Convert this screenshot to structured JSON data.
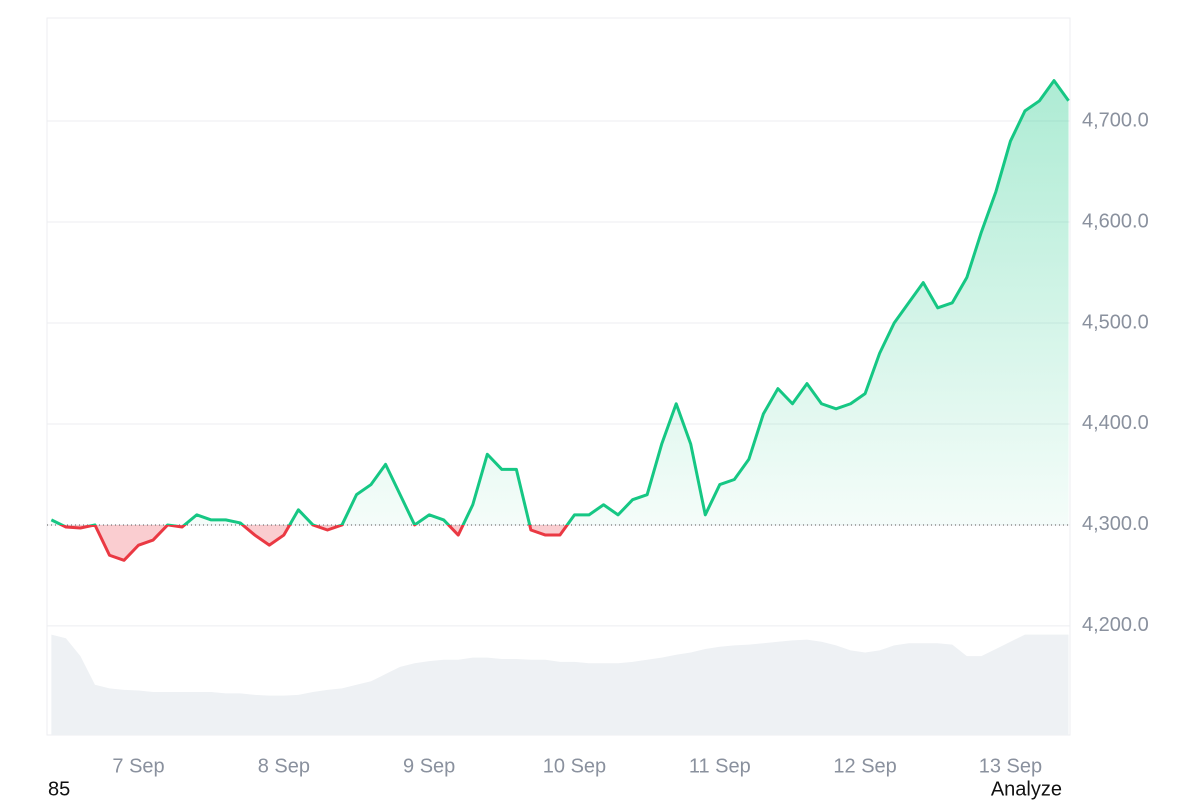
{
  "chart_data": {
    "type": "line",
    "x": [
      6.4,
      6.5,
      6.6,
      6.7,
      6.8,
      6.9,
      7.0,
      7.1,
      7.2,
      7.3,
      7.4,
      7.5,
      7.6,
      7.7,
      7.8,
      7.9,
      8.0,
      8.1,
      8.2,
      8.3,
      8.4,
      8.5,
      8.6,
      8.7,
      8.8,
      8.9,
      9.0,
      9.1,
      9.2,
      9.3,
      9.4,
      9.5,
      9.6,
      9.7,
      9.8,
      9.9,
      10.0,
      10.1,
      10.2,
      10.3,
      10.4,
      10.5,
      10.6,
      10.7,
      10.8,
      10.9,
      11.0,
      11.1,
      11.2,
      11.3,
      11.4,
      11.5,
      11.6,
      11.7,
      11.8,
      11.9,
      12.0,
      12.1,
      12.2,
      12.3,
      12.4,
      12.5,
      12.6,
      12.7,
      12.8,
      12.9,
      13.0,
      13.1,
      13.2,
      13.3,
      13.4
    ],
    "series": [
      {
        "name": "Price",
        "color": "#16c784",
        "below_color": "#ea3943",
        "values": [
          4305,
          4298,
          4297,
          4300,
          4270,
          4265,
          4280,
          4285,
          4300,
          4298,
          4310,
          4305,
          4305,
          4302,
          4290,
          4280,
          4290,
          4315,
          4300,
          4295,
          4300,
          4330,
          4340,
          4360,
          4330,
          4300,
          4310,
          4305,
          4290,
          4320,
          4370,
          4355,
          4355,
          4295,
          4290,
          4290,
          4310,
          4310,
          4320,
          4310,
          4325,
          4330,
          4380,
          4420,
          4380,
          4310,
          4340,
          4345,
          4365,
          4410,
          4435,
          4420,
          4440,
          4420,
          4415,
          4420,
          4430,
          4470,
          4500,
          4520,
          4540,
          4515,
          4520,
          4545,
          4590,
          4630,
          4680,
          4710,
          4720,
          4740,
          4720
        ]
      },
      {
        "name": "Volume",
        "color": "#eef1f4",
        "axis": "y2",
        "values": [
          14,
          13.5,
          11,
          7,
          6.5,
          6.3,
          6.2,
          6,
          6,
          6,
          6,
          6,
          5.8,
          5.8,
          5.6,
          5.5,
          5.5,
          5.6,
          6,
          6.3,
          6.5,
          7,
          7.5,
          8.5,
          9.5,
          10,
          10.3,
          10.5,
          10.5,
          10.8,
          10.8,
          10.6,
          10.6,
          10.5,
          10.5,
          10.2,
          10.2,
          10,
          10,
          10,
          10.2,
          10.5,
          10.8,
          11.2,
          11.5,
          12,
          12.3,
          12.5,
          12.6,
          12.8,
          13,
          13.2,
          13.3,
          13,
          12.5,
          11.8,
          11.5,
          11.8,
          12.5,
          12.8,
          12.8,
          12.8,
          12.6,
          11,
          11,
          12,
          13,
          14,
          14,
          14,
          14
        ]
      }
    ],
    "baseline": 4300,
    "xlim": [
      6.37,
      13.41
    ],
    "xticks": [
      {
        "value": 7,
        "label": "7 Sep"
      },
      {
        "value": 8,
        "label": "8 Sep"
      },
      {
        "value": 9,
        "label": "9 Sep"
      },
      {
        "value": 10,
        "label": "10 Sep"
      },
      {
        "value": 11,
        "label": "11 Sep"
      },
      {
        "value": 12,
        "label": "12 Sep"
      },
      {
        "value": 13,
        "label": "13 Sep"
      }
    ],
    "ylim": [
      4092,
      4802
    ],
    "yticks": [
      {
        "value": 4200,
        "label": "4,200.0"
      },
      {
        "value": 4300,
        "label": "4,300.0"
      },
      {
        "value": 4400,
        "label": "4,400.0"
      },
      {
        "value": 4500,
        "label": "4,500.0"
      },
      {
        "value": 4600,
        "label": "4,600.0"
      },
      {
        "value": 4700,
        "label": "4,700.0"
      }
    ],
    "y2lim": [
      0,
      100
    ],
    "grid": true
  },
  "footer": {
    "left": "85",
    "right": "Analyze"
  }
}
